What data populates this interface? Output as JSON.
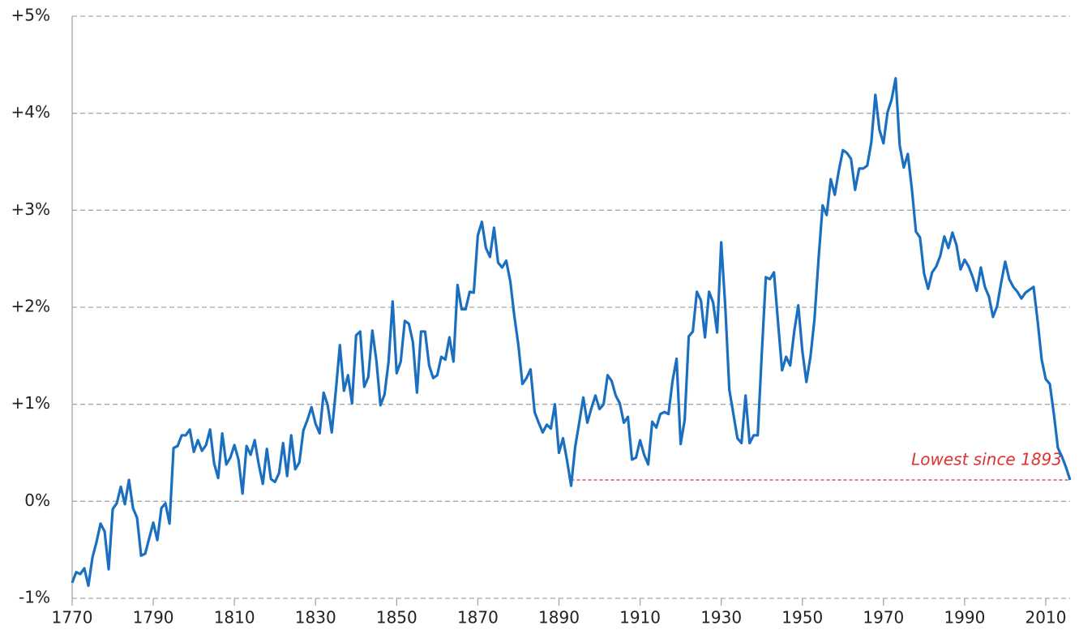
{
  "chart_data": {
    "type": "line",
    "x": [
      1770,
      1771,
      1772,
      1773,
      1774,
      1775,
      1776,
      1777,
      1778,
      1779,
      1780,
      1781,
      1782,
      1783,
      1784,
      1785,
      1786,
      1787,
      1788,
      1789,
      1790,
      1791,
      1792,
      1793,
      1794,
      1795,
      1796,
      1797,
      1798,
      1799,
      1800,
      1801,
      1802,
      1803,
      1804,
      1805,
      1806,
      1807,
      1808,
      1809,
      1810,
      1811,
      1812,
      1813,
      1814,
      1815,
      1816,
      1817,
      1818,
      1819,
      1820,
      1821,
      1822,
      1823,
      1824,
      1825,
      1826,
      1827,
      1828,
      1829,
      1830,
      1831,
      1832,
      1833,
      1834,
      1835,
      1836,
      1837,
      1838,
      1839,
      1840,
      1841,
      1842,
      1843,
      1844,
      1845,
      1846,
      1847,
      1848,
      1849,
      1850,
      1851,
      1852,
      1853,
      1854,
      1855,
      1856,
      1857,
      1858,
      1859,
      1860,
      1861,
      1862,
      1863,
      1864,
      1865,
      1866,
      1867,
      1868,
      1869,
      1870,
      1871,
      1872,
      1873,
      1874,
      1875,
      1876,
      1877,
      1878,
      1879,
      1880,
      1881,
      1882,
      1883,
      1884,
      1885,
      1886,
      1887,
      1888,
      1889,
      1890,
      1891,
      1892,
      1893,
      1894,
      1895,
      1896,
      1897,
      1898,
      1899,
      1900,
      1901,
      1902,
      1903,
      1904,
      1905,
      1906,
      1907,
      1908,
      1909,
      1910,
      1911,
      1912,
      1913,
      1914,
      1915,
      1916,
      1917,
      1918,
      1919,
      1920,
      1921,
      1922,
      1923,
      1924,
      1925,
      1926,
      1927,
      1928,
      1929,
      1930,
      1931,
      1932,
      1933,
      1934,
      1935,
      1936,
      1937,
      1938,
      1939,
      1940,
      1941,
      1942,
      1943,
      1944,
      1945,
      1946,
      1947,
      1948,
      1949,
      1950,
      1951,
      1952,
      1953,
      1954,
      1955,
      1956,
      1957,
      1958,
      1959,
      1960,
      1961,
      1962,
      1963,
      1964,
      1965,
      1966,
      1967,
      1968,
      1969,
      1970,
      1971,
      1972,
      1973,
      1974,
      1975,
      1976,
      1977,
      1978,
      1979,
      1980,
      1981,
      1982,
      1983,
      1984,
      1985,
      1986,
      1987,
      1988,
      1989,
      1990,
      1991,
      1992,
      1993,
      1994,
      1995,
      1996,
      1997,
      1998,
      1999,
      2000,
      2001,
      2002,
      2003,
      2004,
      2005,
      2006,
      2007,
      2008,
      2009,
      2010,
      2011,
      2012,
      2013,
      2014,
      2015,
      2016
    ],
    "series": [
      {
        "color": "#1a6fc0",
        "values": [
          -0.84,
          -0.73,
          -0.75,
          -0.69,
          -0.87,
          -0.58,
          -0.42,
          -0.23,
          -0.31,
          -0.7,
          -0.08,
          -0.02,
          0.15,
          -0.03,
          0.22,
          -0.07,
          -0.17,
          -0.56,
          -0.54,
          -0.38,
          -0.22,
          -0.4,
          -0.07,
          -0.02,
          -0.23,
          0.55,
          0.57,
          0.68,
          0.68,
          0.74,
          0.51,
          0.63,
          0.52,
          0.58,
          0.74,
          0.39,
          0.24,
          0.7,
          0.38,
          0.45,
          0.58,
          0.43,
          0.08,
          0.57,
          0.48,
          0.63,
          0.38,
          0.18,
          0.54,
          0.23,
          0.2,
          0.29,
          0.6,
          0.26,
          0.68,
          0.33,
          0.4,
          0.73,
          0.84,
          0.97,
          0.8,
          0.7,
          1.12,
          0.99,
          0.71,
          1.14,
          1.61,
          1.14,
          1.3,
          1.01,
          1.71,
          1.75,
          1.18,
          1.28,
          1.76,
          1.45,
          0.99,
          1.1,
          1.44,
          2.06,
          1.32,
          1.44,
          1.86,
          1.83,
          1.64,
          1.12,
          1.75,
          1.75,
          1.4,
          1.27,
          1.3,
          1.49,
          1.46,
          1.69,
          1.44,
          2.23,
          1.98,
          1.98,
          2.16,
          2.15,
          2.74,
          2.88,
          2.61,
          2.52,
          2.82,
          2.46,
          2.41,
          2.48,
          2.27,
          1.91,
          1.61,
          1.21,
          1.27,
          1.36,
          0.92,
          0.81,
          0.71,
          0.79,
          0.75,
          1.0,
          0.5,
          0.65,
          0.42,
          0.16,
          0.56,
          0.81,
          1.07,
          0.81,
          0.96,
          1.09,
          0.95,
          1.0,
          1.3,
          1.24,
          1.09,
          1.01,
          0.81,
          0.87,
          0.43,
          0.45,
          0.63,
          0.48,
          0.38,
          0.82,
          0.76,
          0.9,
          0.92,
          0.9,
          1.24,
          1.47,
          0.59,
          0.84,
          1.7,
          1.75,
          2.16,
          2.07,
          1.69,
          2.16,
          2.05,
          1.74,
          2.67,
          2.01,
          1.15,
          0.9,
          0.65,
          0.6,
          1.09,
          0.6,
          0.68,
          0.68,
          1.52,
          2.31,
          2.29,
          2.36,
          1.85,
          1.35,
          1.49,
          1.4,
          1.75,
          2.02,
          1.55,
          1.23,
          1.49,
          1.88,
          2.5,
          3.05,
          2.95,
          3.32,
          3.16,
          3.41,
          3.62,
          3.59,
          3.53,
          3.21,
          3.43,
          3.43,
          3.46,
          3.7,
          4.19,
          3.83,
          3.69,
          4.01,
          4.14,
          4.36,
          3.67,
          3.44,
          3.58,
          3.22,
          2.78,
          2.72,
          2.35,
          2.19,
          2.36,
          2.42,
          2.53,
          2.73,
          2.61,
          2.77,
          2.64,
          2.39,
          2.49,
          2.42,
          2.31,
          2.17,
          2.41,
          2.21,
          2.11,
          1.9,
          2.01,
          2.25,
          2.47,
          2.29,
          2.21,
          2.16,
          2.09,
          2.15,
          2.18,
          2.21,
          1.86,
          1.46,
          1.26,
          1.21,
          0.9,
          0.55,
          0.46,
          0.35,
          0.22
        ]
      }
    ],
    "xlim": [
      1770,
      2016
    ],
    "xticks": [
      1770,
      1790,
      1810,
      1830,
      1850,
      1870,
      1890,
      1910,
      1930,
      1950,
      1970,
      1990,
      2010
    ],
    "ylim": [
      -1,
      5
    ],
    "yticks": [
      {
        "value": -1,
        "label": "-1%"
      },
      {
        "value": 0,
        "label": "0%"
      },
      {
        "value": 1,
        "label": "+1%"
      },
      {
        "value": 2,
        "label": "+2%"
      },
      {
        "value": 3,
        "label": "+3%"
      },
      {
        "value": 4,
        "label": "+4%"
      },
      {
        "value": 5,
        "label": "+5%"
      }
    ],
    "grid": true,
    "annotations": [
      {
        "text": "Lowest since 1893",
        "x": [
          1893,
          2016
        ],
        "y": 0.22,
        "color": "#e03030"
      }
    ]
  }
}
